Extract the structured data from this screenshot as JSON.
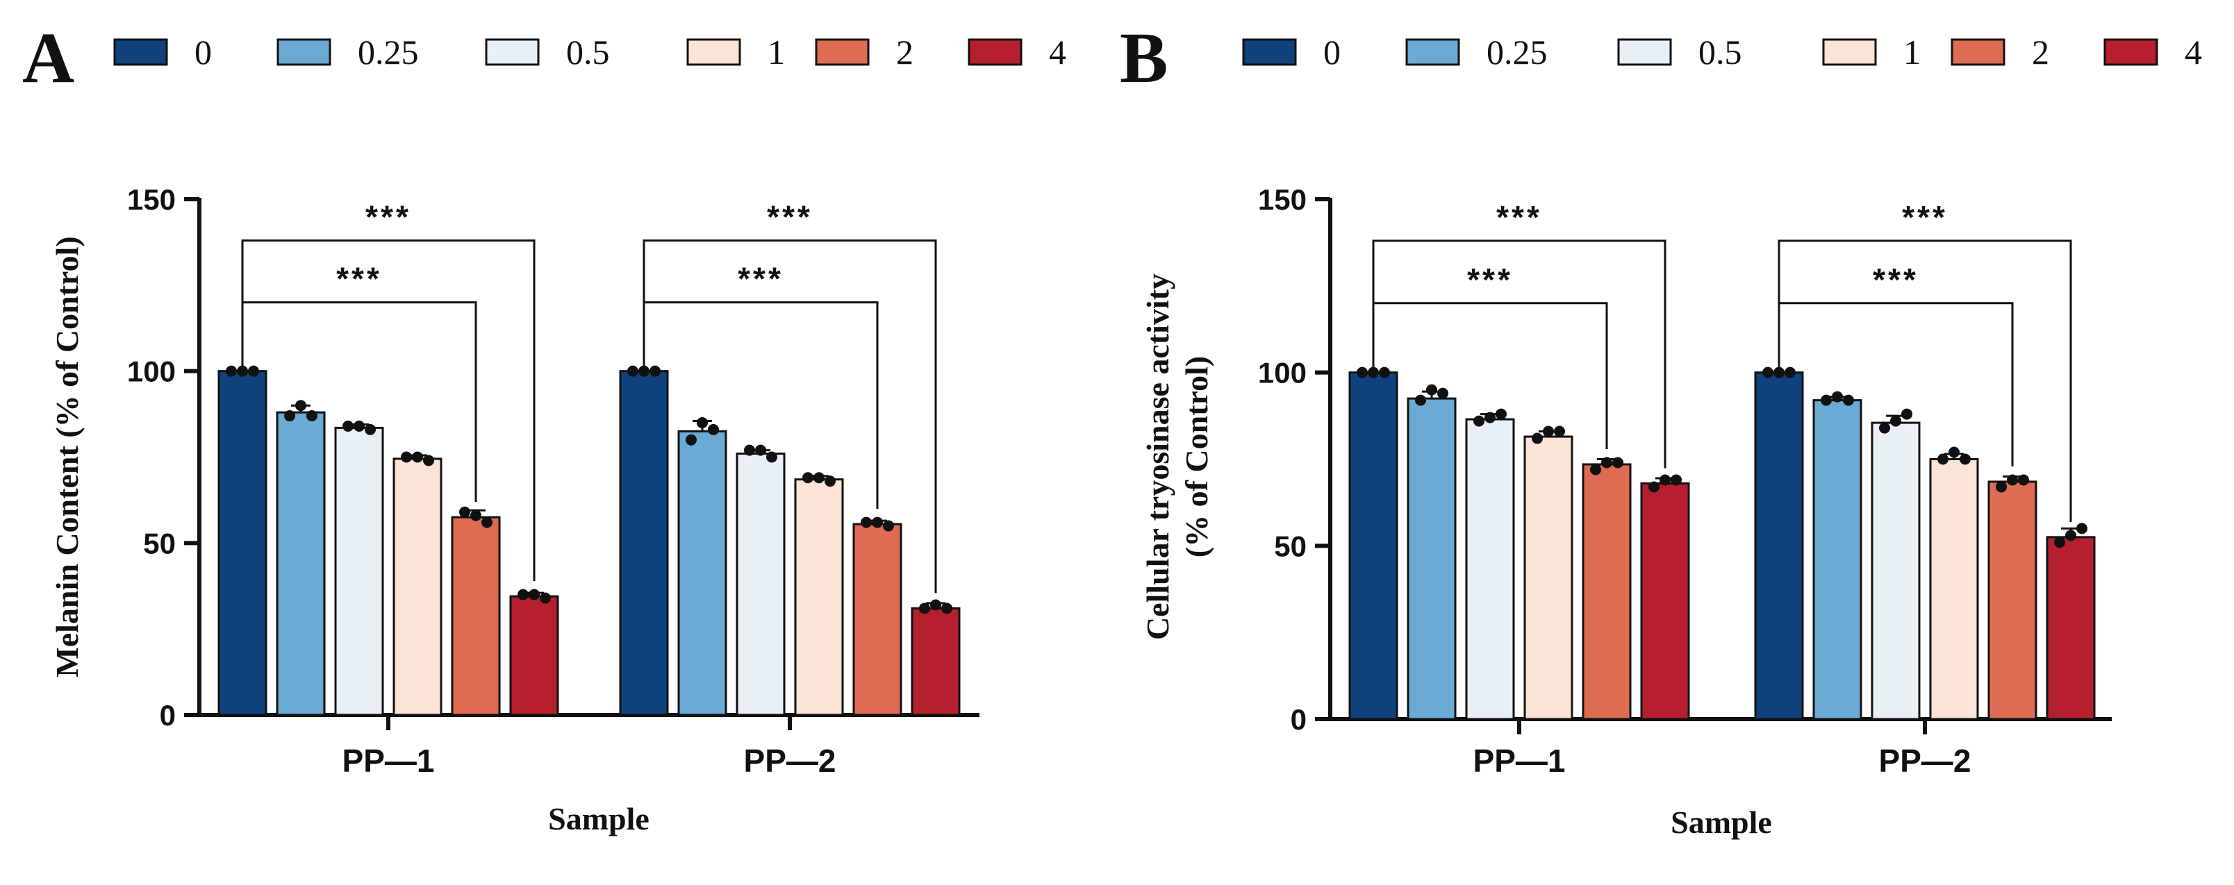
{
  "legend": {
    "labels": [
      "0",
      "0.25",
      "0.5",
      "1",
      "2",
      "4"
    ],
    "colors": [
      "#10427e",
      "#6aaad4",
      "#e9f0f5",
      "#fbe3d6",
      "#dd6c52",
      "#b51f2e"
    ]
  },
  "chart_data": [
    {
      "panel": "A",
      "type": "bar",
      "categories": [
        "PP—1",
        "PP—2"
      ],
      "series": [
        {
          "name": "0",
          "values": [
            100,
            100
          ]
        },
        {
          "name": "0.25",
          "values": [
            88,
            82.5
          ]
        },
        {
          "name": "0.5",
          "values": [
            83.5,
            76
          ]
        },
        {
          "name": "1",
          "values": [
            74.5,
            68.5
          ]
        },
        {
          "name": "2",
          "values": [
            57.5,
            55.5
          ]
        },
        {
          "name": "4",
          "values": [
            34.5,
            31
          ]
        }
      ],
      "errors": [
        [
          0,
          0
        ],
        [
          2,
          3
        ],
        [
          1,
          1
        ],
        [
          1,
          1
        ],
        [
          2,
          1
        ],
        [
          1,
          1.5
        ]
      ],
      "replicates": [
        [
          [
            100,
            100,
            100
          ],
          [
            100,
            100,
            100
          ]
        ],
        [
          [
            87,
            90,
            87
          ],
          [
            80,
            85,
            83
          ]
        ],
        [
          [
            84,
            84,
            83
          ],
          [
            77,
            77,
            75
          ]
        ],
        [
          [
            75,
            75,
            74
          ],
          [
            69,
            69,
            68
          ]
        ],
        [
          [
            59,
            58,
            56
          ],
          [
            56,
            56,
            55
          ]
        ],
        [
          [
            35,
            35,
            34
          ],
          [
            31,
            32,
            31
          ]
        ]
      ],
      "xlabel": "Sample",
      "ylabel": "Melanin Content  (% of Control)",
      "ylim": [
        0,
        150
      ],
      "yticks": [
        0,
        50,
        100,
        150
      ],
      "significance": [
        {
          "group": 0,
          "from": 0,
          "to": 4,
          "label": "***",
          "level": 120
        },
        {
          "group": 0,
          "from": 0,
          "to": 5,
          "label": "***",
          "level": 138
        },
        {
          "group": 1,
          "from": 0,
          "to": 4,
          "label": "***",
          "level": 120
        },
        {
          "group": 1,
          "from": 0,
          "to": 5,
          "label": "***",
          "level": 138
        }
      ]
    },
    {
      "panel": "B",
      "type": "bar",
      "categories": [
        "PP—1",
        "PP—2"
      ],
      "series": [
        {
          "name": "0",
          "values": [
            100,
            100
          ]
        },
        {
          "name": "0.25",
          "values": [
            92.5,
            92
          ]
        },
        {
          "name": "0.5",
          "values": [
            86.5,
            85.5
          ]
        },
        {
          "name": "1",
          "values": [
            81.5,
            75
          ]
        },
        {
          "name": "2",
          "values": [
            73.5,
            68.5
          ]
        },
        {
          "name": "4",
          "values": [
            68,
            52.5
          ]
        }
      ],
      "errors": [
        [
          0,
          0
        ],
        [
          2,
          1
        ],
        [
          1.5,
          2
        ],
        [
          1.5,
          1.5
        ],
        [
          1.5,
          1.5
        ],
        [
          1.5,
          2.5
        ]
      ],
      "replicates": [
        [
          [
            100,
            100,
            100
          ],
          [
            100,
            100,
            100
          ]
        ],
        [
          [
            92,
            95,
            94
          ],
          [
            92,
            93,
            92
          ]
        ],
        [
          [
            86,
            87,
            88
          ],
          [
            84,
            86,
            88
          ]
        ],
        [
          [
            81,
            83,
            83
          ],
          [
            75,
            77,
            75
          ]
        ],
        [
          [
            72,
            74,
            74
          ],
          [
            67,
            69,
            69
          ]
        ],
        [
          [
            67,
            69,
            69
          ],
          [
            51,
            53,
            55
          ]
        ]
      ],
      "xlabel": "Sample",
      "ylabel": "Cellular tryosinase activity\n(% of Control)",
      "ylim": [
        0,
        150
      ],
      "yticks": [
        0,
        50,
        100,
        150
      ],
      "significance": [
        {
          "group": 0,
          "from": 0,
          "to": 4,
          "label": "***",
          "level": 120
        },
        {
          "group": 0,
          "from": 0,
          "to": 5,
          "label": "***",
          "level": 138
        },
        {
          "group": 1,
          "from": 0,
          "to": 4,
          "label": "***",
          "level": 120
        },
        {
          "group": 1,
          "from": 0,
          "to": 5,
          "label": "***",
          "level": 138
        }
      ]
    }
  ]
}
